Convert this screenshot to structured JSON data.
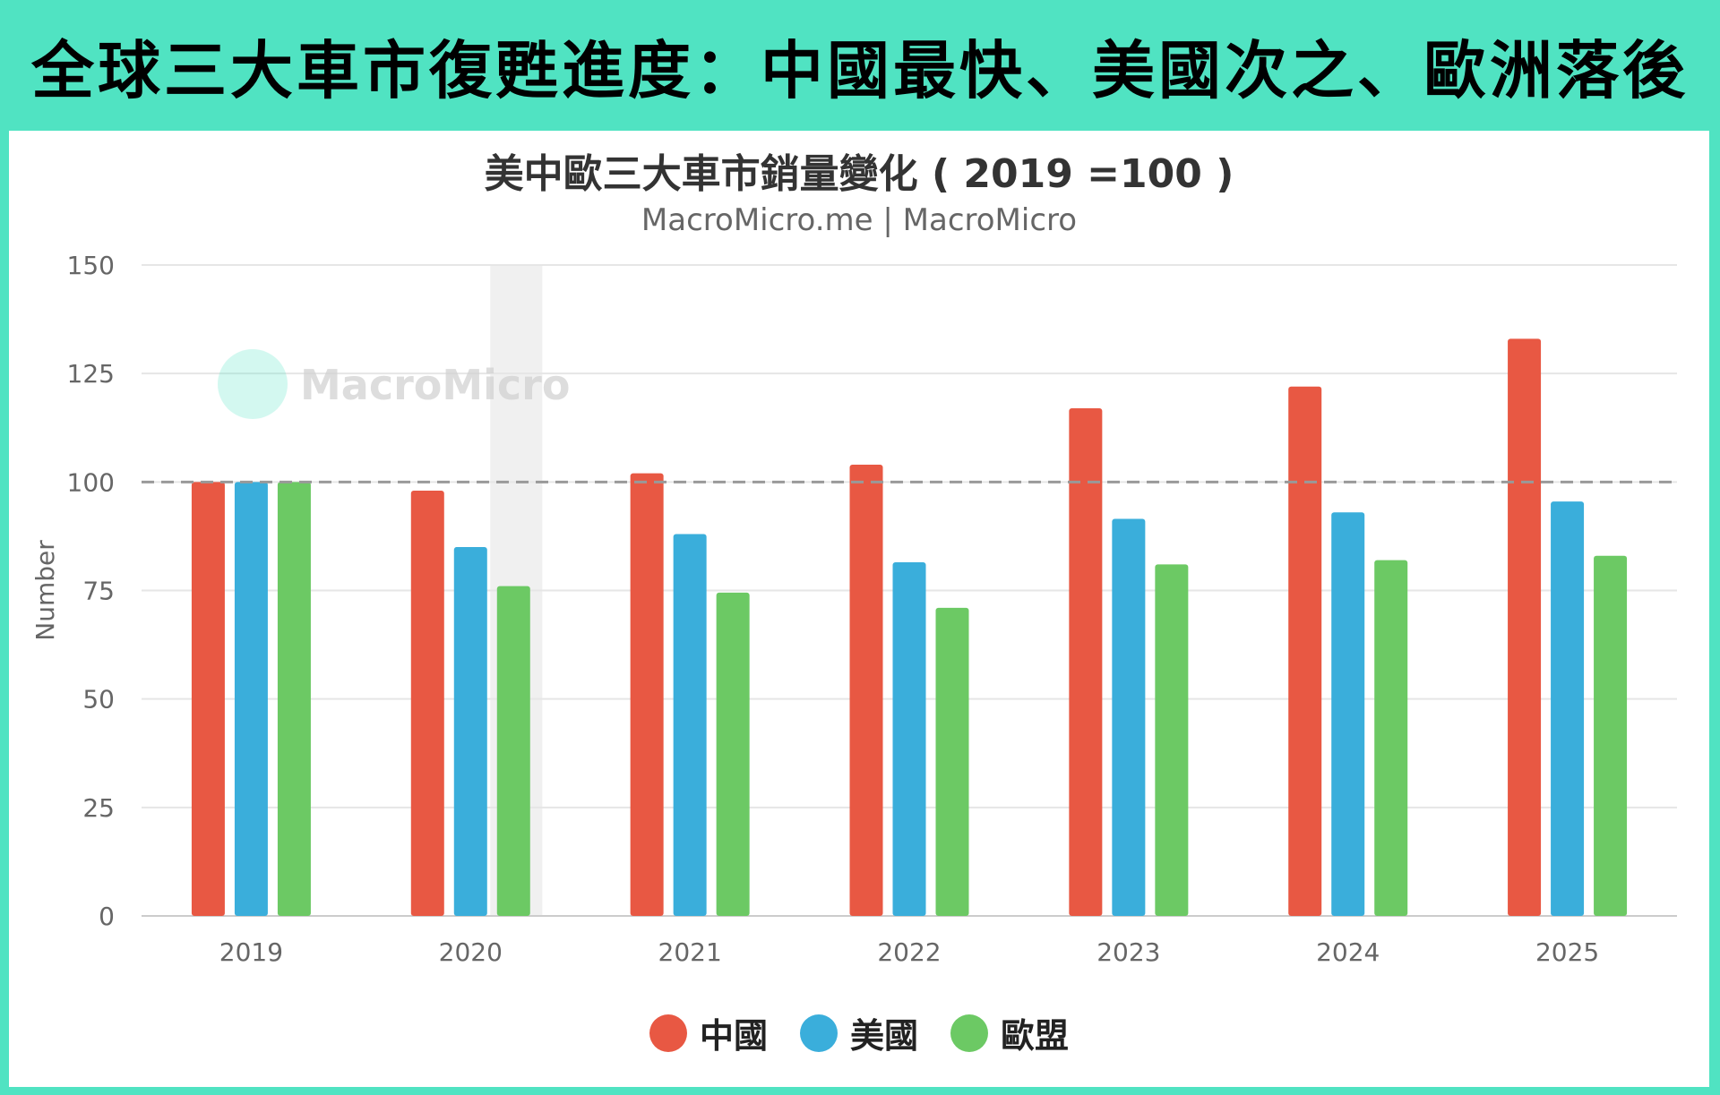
{
  "banner": {
    "title": "全球三大車市復甦進度：中國最快、美國次之、歐洲落後"
  },
  "chart_data": {
    "type": "bar",
    "title": "美中歐三大車市銷量變化 ( 2019 =100 )",
    "subtitle": "MacroMicro.me | MacroMicro",
    "watermark": "MacroMicro",
    "ylabel": "Number",
    "xlabel": "",
    "ylim": [
      0,
      150
    ],
    "yticks": [
      0,
      25,
      50,
      75,
      100,
      125,
      150
    ],
    "categories": [
      "2019",
      "2020",
      "2021",
      "2022",
      "2023",
      "2024",
      "2025"
    ],
    "reference_line": 100,
    "shaded_category": "2020",
    "grid": true,
    "legend_position": "bottom",
    "series": [
      {
        "name": "中國",
        "color": "#e85843",
        "values": [
          100,
          98,
          102,
          104,
          117,
          122,
          133
        ]
      },
      {
        "name": "美國",
        "color": "#3aaedb",
        "values": [
          100,
          85,
          88,
          81.5,
          91.5,
          93,
          95.5
        ]
      },
      {
        "name": "歐盟",
        "color": "#6cc964",
        "values": [
          100,
          76,
          74.5,
          71,
          81,
          82,
          83
        ]
      }
    ]
  }
}
